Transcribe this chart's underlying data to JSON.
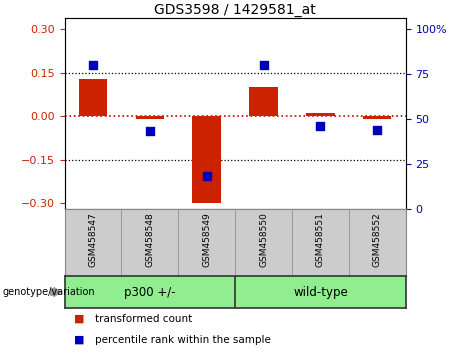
{
  "title": "GDS3598 / 1429581_at",
  "samples": [
    "GSM458547",
    "GSM458548",
    "GSM458549",
    "GSM458550",
    "GSM458551",
    "GSM458552"
  ],
  "red_bars": [
    0.13,
    -0.01,
    -0.3,
    0.1,
    0.01,
    -0.01
  ],
  "blue_dots": [
    80,
    43,
    18,
    80,
    46,
    44
  ],
  "ylim_left": [
    -0.32,
    0.34
  ],
  "ylim_right": [
    0,
    106
  ],
  "yticks_left": [
    -0.3,
    -0.15,
    0.0,
    0.15,
    0.3
  ],
  "yticks_right": [
    0,
    25,
    50,
    75,
    100
  ],
  "hlines": [
    0.15,
    -0.15
  ],
  "zero_line_color": "#CC0000",
  "red_color": "#CC2200",
  "blue_color": "#0000BB",
  "background_plot": "#FFFFFF",
  "background_label": "#CCCCCC",
  "bar_width": 0.5,
  "dot_size": 40,
  "legend_items": [
    "transformed count",
    "percentile rank within the sample"
  ],
  "genotype_label": "genotype/variation",
  "group_labels": [
    "p300 +/-",
    "wild-type"
  ],
  "group_split": 2.5,
  "group_color": "#90EE90"
}
